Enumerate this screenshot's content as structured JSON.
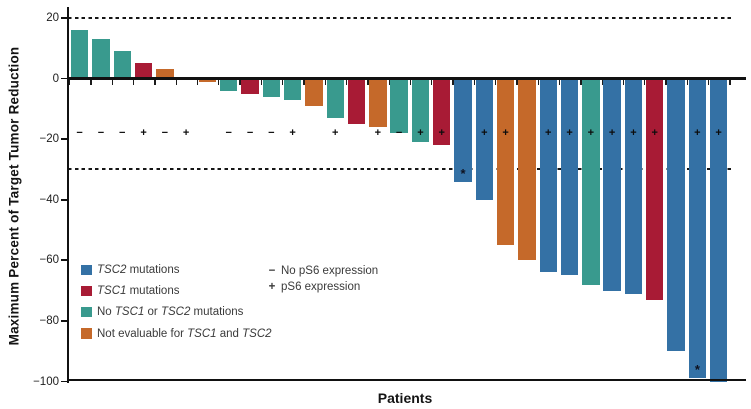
{
  "chart_data": {
    "type": "bar",
    "subtype": "waterfall",
    "title": "",
    "xlabel": "Patients",
    "ylabel": "Maximum Percent of Target Tumor Reduction",
    "ylim": [
      -100,
      23
    ],
    "yticks": [
      20,
      0,
      -20,
      -40,
      -60,
      -80,
      -100
    ],
    "ytick_labels": [
      "20",
      "0",
      "−20",
      "−40",
      "−60",
      "−80",
      "−100"
    ],
    "dashed_reference_lines": [
      20,
      -30
    ],
    "grid": false,
    "legend_position": "lower-left-inside",
    "colors": {
      "tsc2": "#3471a5",
      "tsc1": "#a81b35",
      "no_mut": "#399a8e",
      "not_eval": "#c5692a"
    },
    "patients": [
      {
        "patient": 1,
        "value": 16,
        "group": "no_mut",
        "ps6": "−",
        "asterisk": false
      },
      {
        "patient": 2,
        "value": 13,
        "group": "no_mut",
        "ps6": "−",
        "asterisk": false
      },
      {
        "patient": 3,
        "value": 9,
        "group": "no_mut",
        "ps6": "−",
        "asterisk": false
      },
      {
        "patient": 4,
        "value": 5,
        "group": "tsc1",
        "ps6": "+",
        "asterisk": false
      },
      {
        "patient": 5,
        "value": 3,
        "group": "not_eval",
        "ps6": "−",
        "asterisk": false
      },
      {
        "patient": 6,
        "value": 0,
        "group": null,
        "ps6": "+",
        "asterisk": false
      },
      {
        "patient": 7,
        "value": -1,
        "group": "not_eval",
        "ps6": null,
        "asterisk": false
      },
      {
        "patient": 8,
        "value": -4,
        "group": "no_mut",
        "ps6": "−",
        "asterisk": false
      },
      {
        "patient": 9,
        "value": -5,
        "group": "tsc1",
        "ps6": "−",
        "asterisk": false
      },
      {
        "patient": 10,
        "value": -6,
        "group": "no_mut",
        "ps6": "−",
        "asterisk": false
      },
      {
        "patient": 11,
        "value": -7,
        "group": "no_mut",
        "ps6": "+",
        "asterisk": false
      },
      {
        "patient": 12,
        "value": -9,
        "group": "not_eval",
        "ps6": null,
        "asterisk": false
      },
      {
        "patient": 13,
        "value": -13,
        "group": "no_mut",
        "ps6": "+",
        "asterisk": false
      },
      {
        "patient": 14,
        "value": -15,
        "group": "tsc1",
        "ps6": null,
        "asterisk": false
      },
      {
        "patient": 15,
        "value": -16,
        "group": "not_eval",
        "ps6": "+",
        "asterisk": false
      },
      {
        "patient": 16,
        "value": -18,
        "group": "no_mut",
        "ps6": "−",
        "asterisk": false
      },
      {
        "patient": 17,
        "value": -21,
        "group": "no_mut",
        "ps6": "+",
        "asterisk": false
      },
      {
        "patient": 18,
        "value": -22,
        "group": "tsc1",
        "ps6": "+",
        "asterisk": false
      },
      {
        "patient": 19,
        "value": -34,
        "group": "tsc2",
        "ps6": null,
        "asterisk": true
      },
      {
        "patient": 20,
        "value": -40,
        "group": "tsc2",
        "ps6": "+",
        "asterisk": false
      },
      {
        "patient": 21,
        "value": -55,
        "group": "not_eval",
        "ps6": "+",
        "asterisk": false
      },
      {
        "patient": 22,
        "value": -60,
        "group": "not_eval",
        "ps6": null,
        "asterisk": false
      },
      {
        "patient": 23,
        "value": -64,
        "group": "tsc2",
        "ps6": "+",
        "asterisk": false
      },
      {
        "patient": 24,
        "value": -65,
        "group": "tsc2",
        "ps6": "+",
        "asterisk": false
      },
      {
        "patient": 25,
        "value": -68,
        "group": "no_mut",
        "ps6": "+",
        "asterisk": false
      },
      {
        "patient": 26,
        "value": -70,
        "group": "tsc2",
        "ps6": "+",
        "asterisk": false
      },
      {
        "patient": 27,
        "value": -71,
        "group": "tsc2",
        "ps6": "+",
        "asterisk": false
      },
      {
        "patient": 28,
        "value": -73,
        "group": "tsc1",
        "ps6": "+",
        "asterisk": false
      },
      {
        "patient": 29,
        "value": -90,
        "group": "tsc2",
        "ps6": null,
        "asterisk": false
      },
      {
        "patient": 30,
        "value": -99,
        "group": "tsc2",
        "ps6": "+",
        "asterisk": true
      },
      {
        "patient": 31,
        "value": -100,
        "group": "tsc2",
        "ps6": "+",
        "asterisk": false
      }
    ],
    "legend": [
      {
        "key": "tsc2",
        "parts": [
          {
            "t": "TSC2",
            "i": true
          },
          {
            "t": " mutations"
          }
        ]
      },
      {
        "key": "tsc1",
        "parts": [
          {
            "t": "TSC1",
            "i": true
          },
          {
            "t": " mutations"
          }
        ]
      },
      {
        "key": "no_mut",
        "parts": [
          {
            "t": "No "
          },
          {
            "t": "TSC1",
            "i": true
          },
          {
            "t": " or "
          },
          {
            "t": "TSC2",
            "i": true
          },
          {
            "t": " mutations"
          }
        ]
      },
      {
        "key": "not_eval",
        "parts": [
          {
            "t": "Not evaluable for "
          },
          {
            "t": "TSC1",
            "i": true
          },
          {
            "t": " and "
          },
          {
            "t": "TSC2",
            "i": true
          }
        ]
      }
    ],
    "ps6_legend": [
      {
        "symbol": "−",
        "label": "No pS6 expression"
      },
      {
        "symbol": "+",
        "label": "pS6 expression"
      }
    ],
    "annotations": {
      "asterisk_symbol": "*",
      "asterisk_patients": [
        19,
        30
      ]
    }
  }
}
